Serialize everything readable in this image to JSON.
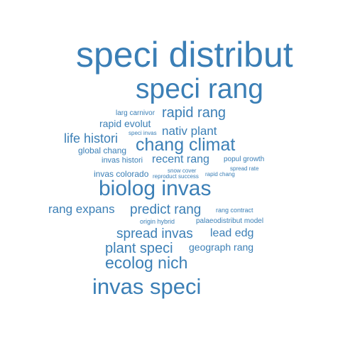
{
  "colors": {
    "word": "#3b7fb6",
    "background": "#ffffff"
  },
  "words": [
    {
      "text": "speci distribut"
    },
    {
      "text": "speci rang"
    },
    {
      "text": "larg carnivor"
    },
    {
      "text": "rapid rang"
    },
    {
      "text": "rapid evolut"
    },
    {
      "text": "nativ plant"
    },
    {
      "text": "speci invas"
    },
    {
      "text": "life histori"
    },
    {
      "text": "chang climat"
    },
    {
      "text": "global chang"
    },
    {
      "text": "invas histori"
    },
    {
      "text": "recent rang"
    },
    {
      "text": "popul growth"
    },
    {
      "text": "spread rate"
    },
    {
      "text": "snow cover"
    },
    {
      "text": "invas colorado"
    },
    {
      "text": "reproduct success"
    },
    {
      "text": "rapid chang"
    },
    {
      "text": "biolog invas"
    },
    {
      "text": "rang expans"
    },
    {
      "text": "predict rang"
    },
    {
      "text": "rang contract"
    },
    {
      "text": "origin hybrid"
    },
    {
      "text": "palaeodistribut model"
    },
    {
      "text": "spread invas"
    },
    {
      "text": "lead edg"
    },
    {
      "text": "plant speci"
    },
    {
      "text": "geograph rang"
    },
    {
      "text": "ecolog nich"
    },
    {
      "text": "invas speci"
    }
  ]
}
